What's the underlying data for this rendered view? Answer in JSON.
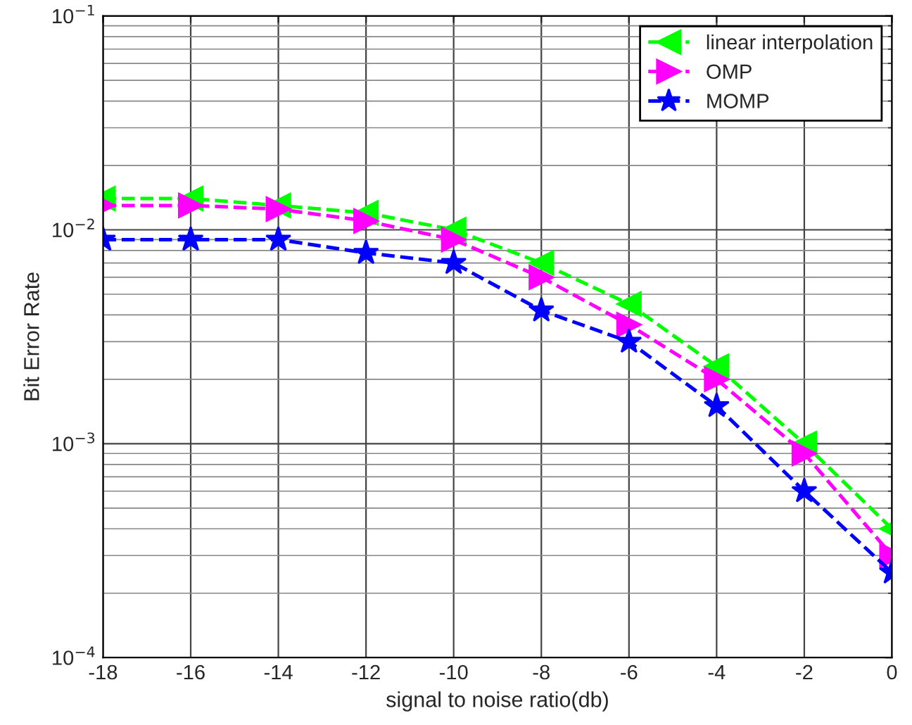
{
  "chart_data": {
    "type": "line",
    "xlabel": "signal to noise ratio(db)",
    "ylabel": "Bit Error Rate",
    "x": [
      -18,
      -16,
      -14,
      -12,
      -10,
      -8,
      -6,
      -4,
      -2,
      0
    ],
    "series": [
      {
        "name": "linear interpolation",
        "color": "#00ff00",
        "marker": "triangle-left",
        "values": [
          0.014,
          0.014,
          0.013,
          0.012,
          0.01,
          0.007,
          0.0045,
          0.0023,
          0.001,
          0.0004
        ]
      },
      {
        "name": "OMP",
        "color": "#ff00ff",
        "marker": "triangle-right",
        "values": [
          0.013,
          0.013,
          0.0125,
          0.011,
          0.009,
          0.006,
          0.0036,
          0.002,
          0.0009,
          0.0003
        ]
      },
      {
        "name": "MOMP",
        "color": "#0000ff",
        "marker": "star",
        "values": [
          0.009,
          0.009,
          0.009,
          0.0078,
          0.007,
          0.0042,
          0.003,
          0.0015,
          0.0006,
          0.00025
        ]
      }
    ],
    "xlim": [
      -18,
      0
    ],
    "xticks": [
      -18,
      -16,
      -14,
      -12,
      -10,
      -8,
      -6,
      -4,
      -2,
      0
    ],
    "log": "y",
    "ylim": [
      0.0001,
      0.1
    ],
    "yticks": [
      {
        "value": 0.0001,
        "label": "10$^{−4}$"
      },
      {
        "value": 0.001,
        "label": "10$^{−3}$"
      },
      {
        "value": 0.01,
        "label": "10$^{−2}$"
      },
      {
        "value": 0.1,
        "label": "10$^{−1}$"
      }
    ],
    "grid": true,
    "legend": "top right",
    "line_style": "dashed"
  }
}
